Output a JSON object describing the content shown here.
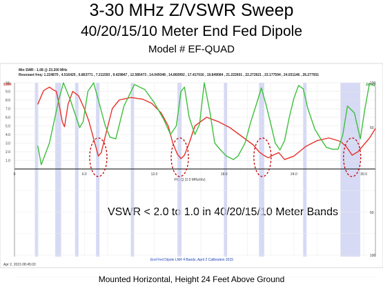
{
  "slide": {
    "title": "3-30 MHz Z/VSWR Sweep",
    "subtitle": "40/20/15/10 Meter End Fed Dipole",
    "model": "Model # EF-QUAD",
    "footer": "Mounted Horizontal, Height 24 Feet Above Ground"
  },
  "chart_data": {
    "type": "line",
    "header_line1": "Min SWR :   1.08 @ 23.200 MHz",
    "header_line2": "Resonant freq:  1.224870 ,  4.516425 ,  6.863771 ,  7.211593 ,  9.429847 ,  12.585473 ,  14.049348 ,  14.860992 ,  17.417016 ,  19.849084 ,  21.222601 ,  22.272621 ,  23.177594 ,  24.031146 ,  26.277931",
    "left_axis_label": "SWR",
    "right_axis_label": "Zmag",
    "xlabel": "FREQ (2.0 MHz/div)",
    "x_range": [
      0,
      31
    ],
    "left_ticks": [
      "10",
      "9.0",
      "8.0",
      "7.0",
      "6.0",
      "5.0",
      "4.0",
      "3.0",
      "2.0",
      "1.0"
    ],
    "right_ticks": [
      "100",
      "50",
      "50",
      "100"
    ],
    "x_ticks": [
      "0",
      "6.0",
      "12.0",
      "18.0",
      "24.0",
      "30.0"
    ],
    "timestamp": "Apr 2, 2015  08:45:03",
    "bottom_caption": "End Fed Dipole LNR 4 Bands, April 2 Calibration 2015",
    "annotation": "VSWR < 2.0 to 1.0 in 40/20/15/10 Meter Bands",
    "band_shading_mhz": [
      [
        1.8,
        2.0
      ],
      [
        3.5,
        4.0
      ],
      [
        5.3,
        5.4
      ],
      [
        7.0,
        7.3
      ],
      [
        10.1,
        10.15
      ],
      [
        14.0,
        14.35
      ],
      [
        18.068,
        18.168
      ],
      [
        21.0,
        21.45
      ],
      [
        24.89,
        24.99
      ],
      [
        28.0,
        29.7
      ]
    ],
    "highlighted_dips_mhz": [
      7.2,
      14.2,
      21.3,
      29.0
    ],
    "series": [
      {
        "label_hidden": "SWR",
        "color": "#e8302a",
        "x": [
          2.0,
          2.5,
          3.0,
          3.3,
          3.6,
          3.9,
          4.1,
          4.3,
          4.6,
          5.0,
          5.5,
          6.0,
          6.4,
          6.8,
          7.0,
          7.2,
          7.45,
          7.8,
          8.4,
          9.0,
          10.0,
          11.0,
          11.8,
          12.6,
          13.2,
          13.6,
          14.0,
          14.3,
          14.6,
          15.0,
          15.5,
          16.5,
          17.5,
          18.5,
          19.5,
          20.5,
          21.0,
          21.4,
          21.8,
          22.2,
          22.7,
          23.2,
          24.0,
          25.0,
          26.0,
          27.0,
          28.0,
          28.5,
          29.0,
          29.5,
          30.0,
          30.5,
          31.0
        ],
        "y": [
          7.5,
          9.1,
          9.5,
          9.2,
          9.0,
          7.0,
          5.5,
          4.9,
          7.5,
          9.0,
          8.5,
          7.0,
          5.5,
          3.5,
          2.5,
          1.5,
          1.9,
          3.8,
          7.0,
          8.0,
          8.3,
          8.1,
          7.6,
          6.5,
          5.0,
          3.0,
          1.7,
          1.2,
          1.6,
          3.0,
          5.0,
          6.0,
          5.5,
          4.8,
          3.8,
          2.8,
          2.0,
          1.6,
          1.3,
          1.6,
          1.9,
          1.1,
          1.5,
          2.6,
          3.3,
          3.6,
          3.2,
          2.6,
          1.6,
          2.0,
          2.8,
          3.6,
          4.7
        ]
      },
      {
        "label_hidden": "Zmag",
        "color": "#3cbf3c",
        "x": [
          2.0,
          2.3,
          3.0,
          3.8,
          4.2,
          4.8,
          5.3,
          5.6,
          5.9,
          6.3,
          6.8,
          7.3,
          7.8,
          8.2,
          8.7,
          9.4,
          10.3,
          11.2,
          12.0,
          12.8,
          13.4,
          13.9,
          14.3,
          14.6,
          15.0,
          15.5,
          15.9,
          16.3,
          16.8,
          17.2,
          17.7,
          18.2,
          18.8,
          19.2,
          19.8,
          20.3,
          20.8,
          21.2,
          21.6,
          22.0,
          22.4,
          22.8,
          23.2,
          23.6,
          24.0,
          24.4,
          24.8,
          25.2,
          25.8,
          26.3,
          26.8,
          27.3,
          27.8,
          28.2,
          28.6,
          29.2,
          29.7,
          30.1,
          30.5
        ],
        "y": [
          2.7,
          0.5,
          3.0,
          8.0,
          10.0,
          8.0,
          6.0,
          4.8,
          5.5,
          9.0,
          10.0,
          7.5,
          5.0,
          3.7,
          3.5,
          7.3,
          9.8,
          9.2,
          7.7,
          5.8,
          4.0,
          5.0,
          9.0,
          9.5,
          6.0,
          4.0,
          5.2,
          10.0,
          6.5,
          3.0,
          2.2,
          1.5,
          1.1,
          1.5,
          3.0,
          5.5,
          7.6,
          9.4,
          7.5,
          5.3,
          3.0,
          2.2,
          3.3,
          6.0,
          8.2,
          9.7,
          9.3,
          7.0,
          4.6,
          3.5,
          2.5,
          2.3,
          2.3,
          4.0,
          7.3,
          6.5,
          3.5,
          7.0,
          10.0
        ]
      }
    ]
  }
}
